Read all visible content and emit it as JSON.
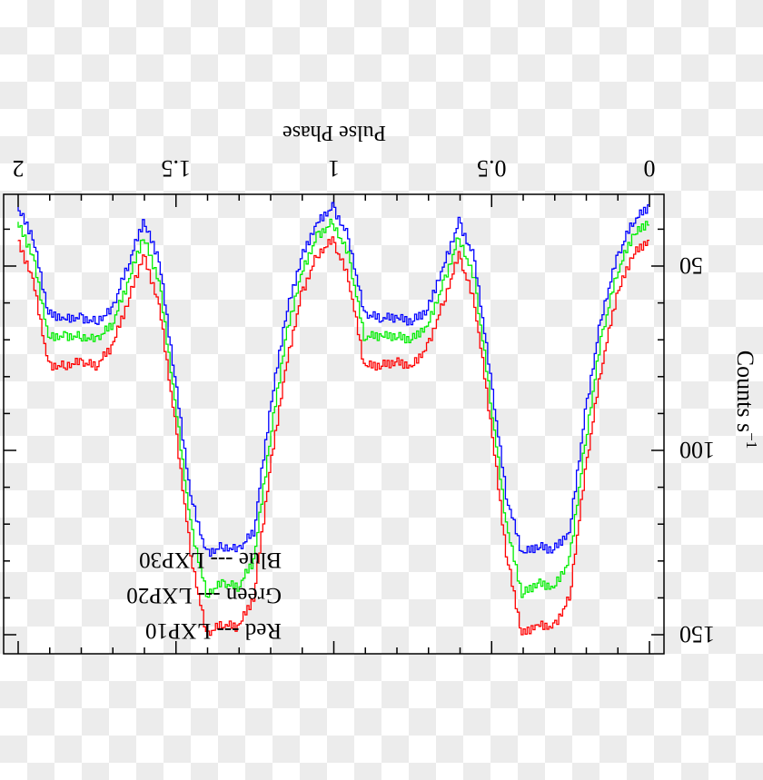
{
  "chart_data": {
    "type": "line",
    "orientation": "rotated 180 degrees",
    "xlabel": "Pulse Phase",
    "ylabel": "Counts s",
    "ylabel_superscript": "−1",
    "xlim": [
      0,
      2
    ],
    "ylim": [
      31,
      155
    ],
    "xticks": [
      0,
      0.5,
      1,
      1.5,
      2
    ],
    "xtick_labels": [
      "0",
      "0.5",
      "1",
      "1.5",
      "2"
    ],
    "yticks": [
      50,
      100,
      150
    ],
    "ytick_labels": [
      "50",
      "100",
      "150"
    ],
    "grid": false,
    "legend_placement": "top-right",
    "legend": [
      "Red --- LXP10",
      "Green --- LXP20",
      "Blue --- LXP30"
    ],
    "x": [
      0,
      0.05,
      0.1,
      0.15,
      0.2,
      0.25,
      0.3,
      0.35,
      0.4,
      0.45,
      0.5,
      0.55,
      0.6,
      0.65,
      0.7,
      0.75,
      0.8,
      0.85,
      0.9,
      0.95,
      1.0,
      1.05,
      1.1,
      1.15,
      1.2,
      1.25,
      1.3,
      1.35,
      1.4,
      1.45,
      1.5,
      1.55,
      1.6,
      1.65,
      1.7,
      1.75,
      1.8,
      1.85,
      1.9,
      1.95,
      2.0
    ],
    "series": [
      {
        "color": "#ff0000",
        "label": "LXP10",
        "values": [
          43,
          47,
          58,
          78,
          106,
          140,
          148,
          147,
          150,
          128,
          92,
          60,
          47,
          60,
          72,
          77,
          76,
          77,
          77,
          53,
          43,
          47,
          58,
          78,
          106,
          140,
          148,
          147,
          150,
          128,
          92,
          60,
          47,
          60,
          72,
          77,
          76,
          77,
          77,
          53,
          43
        ]
      },
      {
        "color": "#00ee00",
        "label": "LXP20",
        "values": [
          38,
          42,
          52,
          70,
          98,
          130,
          137,
          136,
          139,
          120,
          86,
          54,
          42,
          55,
          66,
          70,
          69,
          69,
          69,
          47,
          38,
          42,
          52,
          70,
          98,
          130,
          137,
          136,
          139,
          120,
          86,
          54,
          42,
          55,
          66,
          70,
          69,
          69,
          69,
          47,
          38
        ]
      },
      {
        "color": "#0000ff",
        "label": "LXP30",
        "values": [
          34,
          38,
          48,
          64,
          90,
          122,
          127,
          126,
          128,
          112,
          80,
          48,
          38,
          50,
          62,
          65,
          64,
          64,
          63,
          42,
          34,
          38,
          48,
          64,
          90,
          122,
          127,
          126,
          128,
          112,
          80,
          48,
          38,
          50,
          62,
          65,
          64,
          64,
          63,
          42,
          34
        ]
      }
    ]
  }
}
